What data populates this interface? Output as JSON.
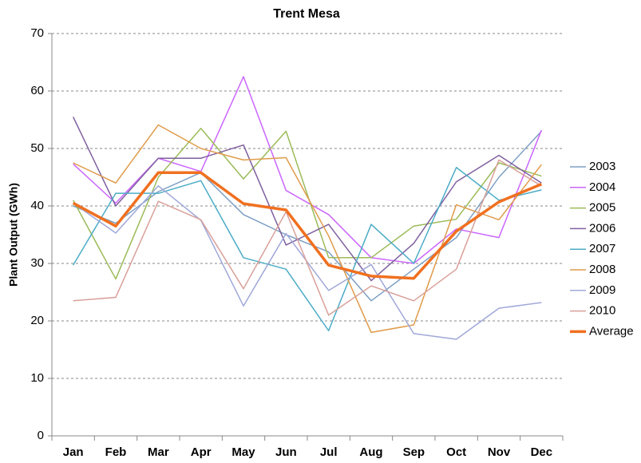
{
  "chart_data": {
    "type": "line",
    "title": "Trent Mesa",
    "y_label": "Plant Output (GWh)",
    "categories": [
      "Jan",
      "Feb",
      "Mar",
      "Apr",
      "May",
      "Jun",
      "Jul",
      "Aug",
      "Sep",
      "Oct",
      "Nov",
      "Dec"
    ],
    "ylim": [
      0,
      70
    ],
    "yticks": [
      0,
      10,
      20,
      30,
      40,
      50,
      60,
      70
    ],
    "grid": true,
    "legend": "right",
    "series": [
      {
        "name": "2003",
        "color": "#7d9fc4",
        "width": 1.5,
        "values": [
          40,
          37,
          42.5,
          45.8,
          38.5,
          35,
          32,
          23.5,
          29,
          34.5,
          45,
          53
        ]
      },
      {
        "name": "2004",
        "color": "#cc66ff",
        "width": 1.5,
        "values": [
          47.3,
          40.5,
          48.3,
          46,
          62.5,
          42.7,
          38.5,
          31,
          30,
          36,
          34.5,
          53.2
        ]
      },
      {
        "name": "2005",
        "color": "#9bbb59",
        "width": 1.5,
        "values": [
          41,
          27.3,
          45,
          53.5,
          44.7,
          53,
          31,
          31,
          36.5,
          37.7,
          47.5,
          45.2
        ]
      },
      {
        "name": "2006",
        "color": "#7f5f9f",
        "width": 1.5,
        "values": [
          55.5,
          40,
          48.3,
          48.3,
          50.6,
          33.2,
          36.8,
          27,
          33.5,
          44.2,
          48.8,
          44
        ]
      },
      {
        "name": "2007",
        "color": "#4bacc6",
        "width": 1.5,
        "values": [
          29.7,
          42.2,
          42.2,
          44.4,
          31,
          29,
          18.3,
          36.8,
          30,
          46.7,
          41,
          42.8
        ]
      },
      {
        "name": "2008",
        "color": "#e09b4a",
        "width": 1.5,
        "values": [
          47.5,
          44,
          54.1,
          50,
          48,
          48.4,
          34.8,
          18,
          19.3,
          40.2,
          37.6,
          47.2
        ]
      },
      {
        "name": "2009",
        "color": "#a0a8d8",
        "width": 1.5,
        "values": [
          40.5,
          35.3,
          43.5,
          37.5,
          22.6,
          35.2,
          25.3,
          29.8,
          17.8,
          16.8,
          22.2,
          23.2
        ]
      },
      {
        "name": "2010",
        "color": "#d9a09a",
        "width": 1.5,
        "values": [
          23.5,
          24.1,
          40.8,
          37.6,
          25.6,
          39,
          21,
          26.1,
          23.5,
          29,
          48,
          43.5
        ]
      },
      {
        "name": "Average",
        "color": "#f07020",
        "width": 3.5,
        "values": [
          40.5,
          36.5,
          45.8,
          45.8,
          40.4,
          39.3,
          29.7,
          27.8,
          27.4,
          35.6,
          40.7,
          43.8
        ]
      }
    ]
  }
}
